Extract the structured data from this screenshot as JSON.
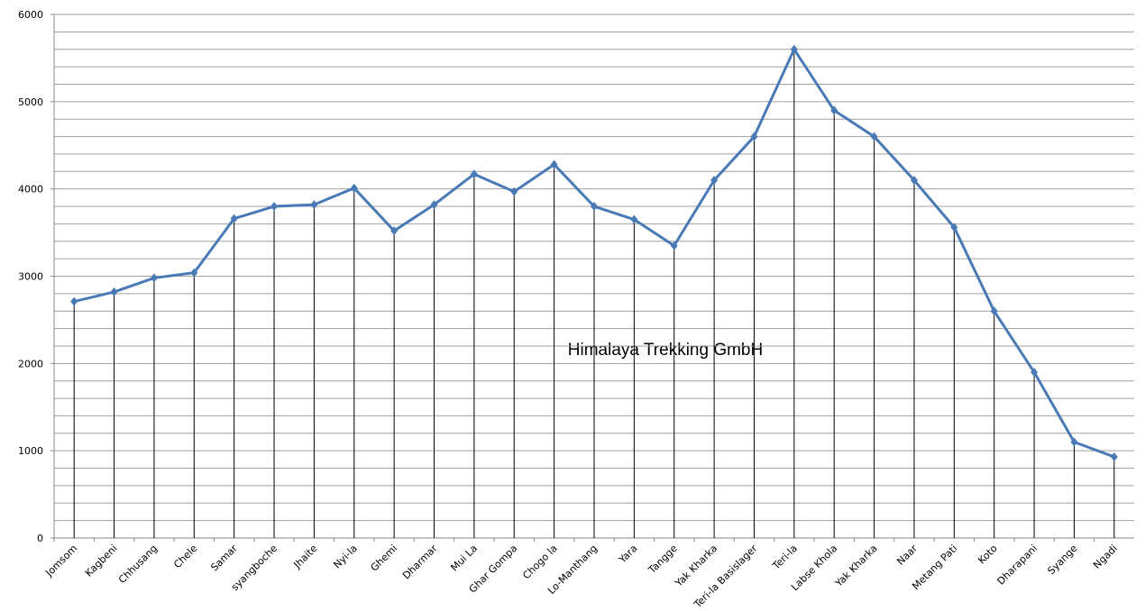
{
  "chart_data": {
    "type": "line",
    "annotation": "Himalaya Trekking GmbH",
    "categories": [
      "Jomsom",
      "Kagbeni",
      "Chhusang",
      "Chele",
      "Samar",
      "syangboche",
      "Jhaite",
      "Nyi-la",
      "Ghemi",
      "Dharmar",
      "Mui La",
      "Ghar Gompa",
      "Chogo la",
      "Lo-Manthang",
      "Yara",
      "Tangge",
      "Yak Kharka",
      "Teri-la Basislager",
      "Teri-la",
      "Labse Khola",
      "Yak Kharka",
      "Naar",
      "Metang  Pati",
      "Koto",
      "Dharapani",
      "Syange",
      "Ngadi"
    ],
    "values": [
      2710,
      2820,
      2980,
      3040,
      3660,
      3800,
      3820,
      4010,
      3520,
      3820,
      4170,
      3970,
      4280,
      3800,
      3650,
      3350,
      4100,
      4600,
      5600,
      4900,
      4600,
      4100,
      3560,
      2600,
      1900,
      1100,
      930
    ],
    "color": "#4a7ab5",
    "drop_lines": true,
    "ylim": [
      0,
      6000
    ],
    "yticks": [
      0,
      1000,
      2000,
      3000,
      4000,
      5000,
      6000
    ],
    "ygrid": [
      200,
      400,
      600,
      800,
      1000,
      1200,
      1400,
      1600,
      1800,
      2000,
      2200,
      2400,
      2600,
      2800,
      3000,
      3200,
      3400,
      3600,
      3800,
      4000,
      4200,
      4400,
      4600,
      4800,
      5000,
      5200,
      5400,
      5600,
      5800,
      6000
    ]
  }
}
